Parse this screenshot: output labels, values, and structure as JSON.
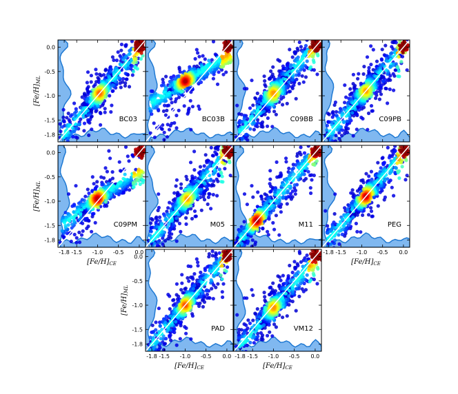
{
  "chart_data": {
    "type": "scatter",
    "description_axes": {
      "x_ticks": [
        "-1.8",
        "-1.5",
        "-1.0",
        "-0.5",
        "0.0"
      ],
      "x_tick_values": [
        -1.8,
        -1.5,
        -1.0,
        -0.5,
        0.0
      ],
      "y_ticks": [
        "0.0",
        "-0.5",
        "-1.0",
        "-1.5",
        "-1.8"
      ],
      "y_tick_values": [
        0.0,
        -0.5,
        -1.0,
        -1.5,
        -1.8
      ],
      "xlim": [
        -1.95,
        0.15
      ],
      "ylim": [
        -1.95,
        0.15
      ],
      "xlabel": "[Fe/H]",
      "xlabel_sub": "CE",
      "ylabel": "[Fe/H]",
      "ylabel_sub": "ML"
    },
    "colormap": [
      "#00007f",
      "#0000ff",
      "#0080ff",
      "#00ffff",
      "#80ff80",
      "#ffff00",
      "#ff8000",
      "#ff0000",
      "#7f0000"
    ],
    "marginal_fill": "#80b8f0",
    "marginal_line": "#1e78d2",
    "identity_line": "#ffffff",
    "panels": [
      {
        "label": "BC03",
        "row": 0,
        "col": 0,
        "peak": [
          -0.95,
          -0.95
        ],
        "spread": 0.12,
        "slope": 1.0,
        "hot": 0.5
      },
      {
        "label": "BC03B",
        "row": 0,
        "col": 1,
        "peak": [
          -1.0,
          -0.7
        ],
        "spread": 0.08,
        "slope": 0.55,
        "hot": 0.9
      },
      {
        "label": "C09BB",
        "row": 0,
        "col": 2,
        "peak": [
          -1.0,
          -0.95
        ],
        "spread": 0.14,
        "slope": 1.0,
        "hot": 0.4
      },
      {
        "label": "C09PB",
        "row": 0,
        "col": 3,
        "peak": [
          -0.9,
          -0.9
        ],
        "spread": 0.13,
        "slope": 1.0,
        "hot": 0.35
      },
      {
        "label": "C09PM",
        "row": 1,
        "col": 0,
        "peak": [
          -1.0,
          -0.95
        ],
        "spread": 0.09,
        "slope": 0.65,
        "hot": 0.9
      },
      {
        "label": "M05",
        "row": 1,
        "col": 1,
        "peak": [
          -0.95,
          -0.95
        ],
        "spread": 0.13,
        "slope": 1.0,
        "hot": 0.35
      },
      {
        "label": "M11",
        "row": 1,
        "col": 2,
        "peak": [
          -1.4,
          -1.4
        ],
        "spread": 0.1,
        "slope": 1.0,
        "hot": 0.95
      },
      {
        "label": "PEG",
        "row": 1,
        "col": 3,
        "peak": [
          -0.9,
          -0.9
        ],
        "spread": 0.11,
        "slope": 1.0,
        "hot": 0.85
      },
      {
        "label": "PAD",
        "row": 2,
        "col": 1,
        "peak": [
          -1.0,
          -1.0
        ],
        "spread": 0.12,
        "slope": 1.0,
        "hot": 0.55
      },
      {
        "label": "VM12",
        "row": 2,
        "col": 2,
        "peak": [
          -1.0,
          -1.05
        ],
        "spread": 0.13,
        "slope": 1.0,
        "hot": 0.4
      }
    ]
  }
}
